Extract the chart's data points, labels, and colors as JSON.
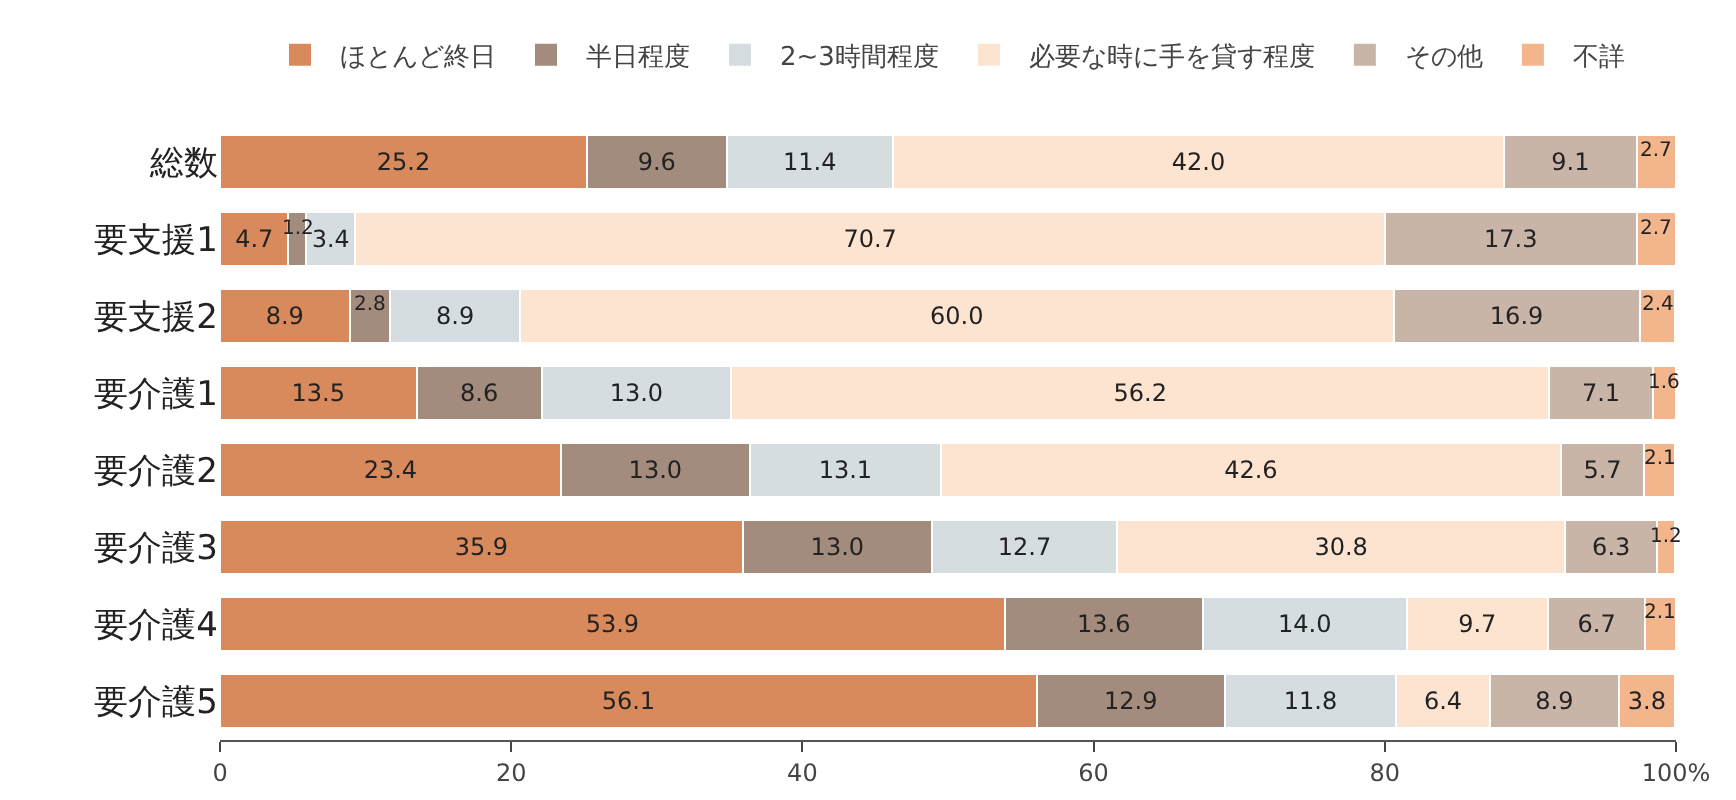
{
  "chart_data": {
    "type": "bar",
    "orientation": "horizontal",
    "stacked": true,
    "legend": "top",
    "grid": false,
    "categories": [
      "総数",
      "要支援1",
      "要支援2",
      "要介護1",
      "要介護2",
      "要介護3",
      "要介護4",
      "要介護5"
    ],
    "xlim": [
      0,
      100
    ],
    "xticks": [
      0,
      20,
      40,
      60,
      80,
      {
        "value": 100,
        "label": "100%"
      }
    ],
    "series": [
      {
        "name": "ほとんど終日",
        "color": "#d98a5c",
        "values": [
          25.2,
          4.7,
          8.9,
          13.5,
          23.4,
          35.9,
          53.9,
          56.1
        ],
        "value_labels": [
          "25.2",
          "4.7",
          "8.9",
          "13.5",
          "23.4",
          "35.9",
          "53.9",
          "56.1"
        ]
      },
      {
        "name": "半日程度",
        "color": "#a38b7d",
        "values": [
          9.6,
          1.2,
          2.8,
          8.6,
          13.0,
          13.0,
          13.6,
          12.9
        ],
        "value_labels": [
          "9.6",
          "1.2",
          "2.8",
          "8.6",
          "13.0",
          "13.0",
          "13.6",
          "12.9"
        ]
      },
      {
        "name": "2~3時間程度",
        "color": "#d6dde0",
        "values": [
          11.4,
          3.4,
          8.9,
          13.0,
          13.1,
          12.7,
          14.0,
          11.8
        ],
        "value_labels": [
          "11.4",
          "3.4",
          "8.9",
          "13.0",
          "13.1",
          "12.7",
          "14.0",
          "11.8"
        ]
      },
      {
        "name": "必要な時に手を貸す程度",
        "color": "#fce4d0",
        "values": [
          42.0,
          70.7,
          60.0,
          56.2,
          42.6,
          30.8,
          9.7,
          6.4
        ],
        "value_labels": [
          "42.0",
          "70.7",
          "60.0",
          "56.2",
          "42.6",
          "30.8",
          "9.7",
          "6.4"
        ]
      },
      {
        "name": "その他",
        "color": "#c9b4a8",
        "values": [
          9.1,
          17.3,
          16.9,
          7.1,
          5.7,
          6.3,
          6.7,
          8.9
        ],
        "value_labels": [
          "9.1",
          "17.3",
          "16.9",
          "7.1",
          "5.7",
          "6.3",
          "6.7",
          "8.9"
        ]
      },
      {
        "name": "不詳",
        "color": "#f2b58c",
        "values": [
          2.7,
          2.7,
          2.4,
          1.6,
          2.1,
          1.2,
          2.1,
          3.8
        ],
        "value_labels": [
          "2.7",
          "2.7",
          "2.4",
          "1.6",
          "2.1",
          "1.2",
          "2.1",
          "3.8"
        ]
      }
    ]
  }
}
